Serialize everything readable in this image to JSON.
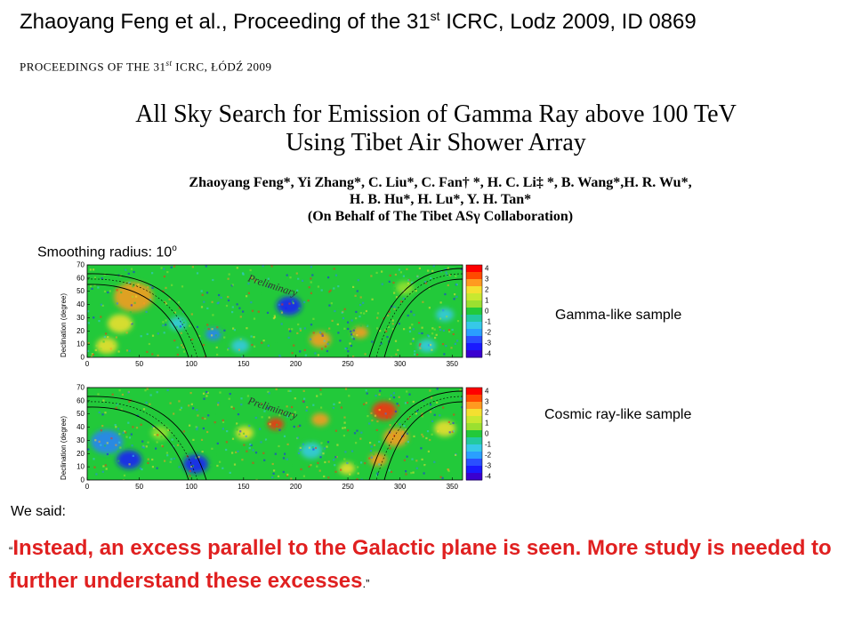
{
  "slide": {
    "title_main": "Zhaoyang Feng et al., Proceeding of the 31",
    "title_sup": "st",
    "title_rest": " ICRC, Lodz 2009,  ID 0869"
  },
  "paper": {
    "header_pre": "PROCEEDINGS OF THE 31",
    "header_sup": "st",
    "header_post": " ICRC, ŁÓDŹ 2009",
    "title_line1": "All Sky Search for Emission of Gamma Ray above 100 TeV",
    "title_line2": "Using Tibet Air Shower Array",
    "authors_line1": "Zhaoyang Feng*, Yi Zhang*, C. Liu*, C. Fan† *, H. C. Li‡ *, B. Wang*,H. R. Wu*,",
    "authors_line2": "H. B. Hu*, H. Lu*, Y. H. Tan*",
    "authors_line3": "(On Behalf of The Tibet ASγ Collaboration)"
  },
  "smoothing": {
    "label": "Smoothing radius: 10",
    "sup": "o"
  },
  "maps": [
    {
      "sample_label": "Gamma-like sample",
      "watermark": "Preliminary",
      "ylabel": "Declination (degree)",
      "xticks": [
        "0",
        "50",
        "100",
        "150",
        "200",
        "250",
        "300",
        "350"
      ],
      "yticks": [
        "0",
        "10",
        "20",
        "30",
        "40",
        "50",
        "60",
        "70"
      ],
      "colorbar_ticks": [
        "4",
        "3",
        "2",
        "1",
        "0",
        "-1",
        "-2",
        "-3",
        "-4"
      ]
    },
    {
      "sample_label": "Cosmic ray-like sample",
      "watermark": "Preliminary",
      "ylabel": "Declination (degree)",
      "xticks": [
        "0",
        "50",
        "100",
        "150",
        "200",
        "250",
        "300",
        "350"
      ],
      "yticks": [
        "0",
        "10",
        "20",
        "30",
        "40",
        "50",
        "60",
        "70"
      ],
      "colorbar_ticks": [
        "4",
        "3",
        "2",
        "1",
        "0",
        "-1",
        "-2",
        "-3",
        "-4"
      ]
    }
  ],
  "note": {
    "intro": "We said:",
    "open_quote": "“",
    "quote_text": "Instead, an excess parallel to the Galactic plane is seen. More study is needed to further understand these excesses",
    "close_quote": ".”"
  },
  "colors": {
    "quote": "#e02020",
    "map_base": "#22c93a"
  }
}
